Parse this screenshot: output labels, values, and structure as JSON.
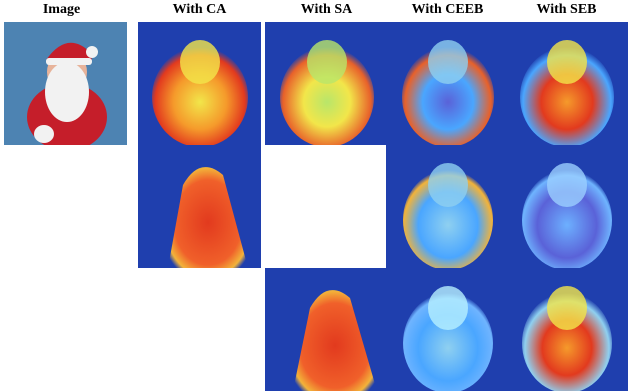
{
  "headers": {
    "image": "Image",
    "ca": "With CA",
    "sa": "With SA",
    "ceeb": "With CEEB",
    "seb": "With SEB"
  },
  "palette": {
    "heat_bg": "#1f3fae",
    "heat_low": "#4aa6ff",
    "heat_mid": "#f2e64a",
    "heat_high": "#e23a1e",
    "photo_bg": "#4d83b2",
    "suit_red": "#c51e2a",
    "beard_white": "#f2f2f2",
    "skin": "#e7b39a"
  },
  "grid": {
    "rows": [
      [
        "photo",
        "heat",
        "heat",
        "heat",
        "heat"
      ],
      [
        "empty",
        "heat",
        "blank",
        "heat",
        "heat"
      ],
      [
        "empty",
        "empty",
        "heat",
        "heat",
        "heat"
      ]
    ]
  }
}
